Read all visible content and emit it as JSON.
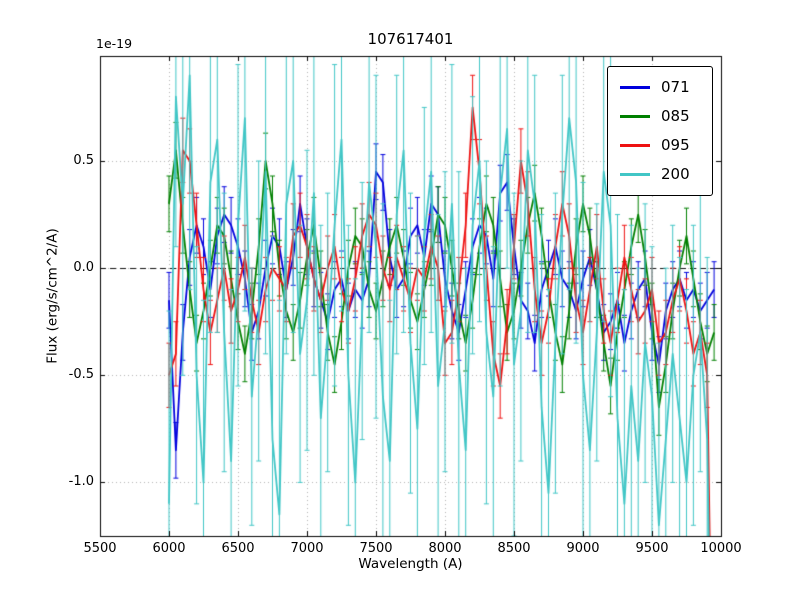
{
  "title": "107617401",
  "axes": {
    "xlabel": "Wavelength (A)",
    "ylabel": "Flux (erg/s/cm^2/A)",
    "offset_text": "1e-19",
    "xlim": [
      5500,
      10000
    ],
    "ylim": [
      -1.25,
      0.99
    ],
    "xticks": [
      5500,
      6000,
      6500,
      7000,
      7500,
      8000,
      8500,
      9000,
      9500,
      10000
    ],
    "yticks": [
      -1.0,
      -0.5,
      0.0,
      0.5
    ],
    "ytick_labels": [
      "-1.0",
      "-0.5",
      "0.0",
      "0.5"
    ],
    "grid": true,
    "grid_color": "#b0b0b0",
    "zero_line_color": "#111111"
  },
  "legend": {
    "position": "upper right",
    "entries": [
      "071",
      "085",
      "095",
      "200"
    ]
  },
  "chart_data": {
    "type": "line",
    "title": "107617401",
    "xlabel": "Wavelength (A)",
    "ylabel": "Flux (erg/s/cm^2/A)",
    "scale_factor": "1e-19",
    "xlim": [
      5500,
      10000
    ],
    "ylim": [
      -1.25,
      0.99
    ],
    "x_start": 6000,
    "x_step": 50,
    "series": [
      {
        "name": "071",
        "color": "#0000dd",
        "yerr": 0.13,
        "values": [
          -0.15,
          -0.85,
          -0.3,
          0.05,
          0.2,
          0.1,
          -0.1,
          0.15,
          0.25,
          0.2,
          0.1,
          -0.05,
          -0.3,
          -0.2,
          0.0,
          0.15,
          0.1,
          -0.1,
          0.05,
          0.3,
          0.1,
          -0.05,
          -0.15,
          -0.25,
          -0.1,
          -0.05,
          -0.2,
          -0.1,
          -0.15,
          -0.05,
          0.45,
          0.4,
          0.05,
          -0.1,
          -0.05,
          0.15,
          0.2,
          0.05,
          0.3,
          0.25,
          -0.05,
          -0.2,
          -0.3,
          -0.1,
          0.1,
          0.2,
          0.15,
          -0.05,
          0.35,
          0.4,
          0.1,
          -0.15,
          -0.2,
          -0.35,
          -0.1,
          0.0,
          0.1,
          -0.05,
          -0.1,
          -0.2,
          -0.05,
          0.05,
          -0.1,
          -0.3,
          -0.25,
          -0.15,
          -0.35,
          -0.2,
          -0.1,
          -0.05,
          -0.3,
          -0.45,
          -0.2,
          -0.1,
          -0.05,
          -0.15,
          -0.1,
          -0.2,
          -0.15,
          -0.1
        ]
      },
      {
        "name": "085",
        "color": "#008000",
        "yerr": 0.13,
        "values": [
          0.3,
          0.55,
          0.2,
          -0.1,
          -0.35,
          -0.2,
          0.0,
          0.2,
          0.15,
          -0.05,
          -0.25,
          -0.4,
          -0.2,
          0.1,
          0.5,
          0.3,
          0.0,
          -0.2,
          -0.3,
          -0.15,
          0.05,
          0.2,
          -0.05,
          -0.3,
          -0.45,
          -0.25,
          0.0,
          0.15,
          0.1,
          -0.1,
          -0.2,
          -0.05,
          0.1,
          0.2,
          0.05,
          -0.15,
          -0.25,
          -0.1,
          0.05,
          0.25,
          0.2,
          0.0,
          -0.2,
          -0.35,
          -0.15,
          0.1,
          0.3,
          0.2,
          -0.05,
          -0.3,
          -0.2,
          0.0,
          0.2,
          0.35,
          0.15,
          -0.1,
          -0.3,
          -0.45,
          -0.2,
          0.1,
          0.3,
          0.15,
          -0.1,
          -0.35,
          -0.55,
          -0.3,
          -0.1,
          0.1,
          0.25,
          0.05,
          -0.2,
          -0.65,
          -0.45,
          -0.2,
          0.0,
          0.15,
          -0.05,
          -0.25,
          -0.4,
          -0.3
        ]
      },
      {
        "name": "095",
        "color": "#ee1111",
        "yerr": 0.15,
        "values": [
          -0.5,
          -0.4,
          0.55,
          0.5,
          0.2,
          -0.1,
          -0.3,
          -0.15,
          0.0,
          -0.2,
          -0.1,
          0.05,
          -0.15,
          -0.3,
          -0.1,
          0.0,
          -0.05,
          -0.1,
          0.15,
          0.2,
          0.1,
          -0.05,
          -0.15,
          0.0,
          0.1,
          -0.1,
          -0.2,
          -0.05,
          0.15,
          0.25,
          0.2,
          0.0,
          -0.1,
          0.05,
          -0.05,
          -0.15,
          0.0,
          -0.05,
          0.1,
          0.0,
          -0.35,
          -0.3,
          -0.1,
          0.2,
          0.75,
          0.45,
          0.0,
          -0.4,
          -0.55,
          -0.25,
          0.1,
          0.5,
          0.3,
          -0.1,
          -0.35,
          -0.2,
          0.1,
          0.3,
          0.15,
          -0.15,
          -0.3,
          -0.1,
          0.1,
          -0.2,
          -0.35,
          -0.15,
          0.05,
          -0.1,
          -0.25,
          -0.2,
          -0.1,
          -0.35,
          -0.3,
          -0.15,
          -0.05,
          -0.2,
          -0.4,
          -0.3,
          -0.5,
          -2.6
        ]
      },
      {
        "name": "200",
        "color": "#41c6c6",
        "yerr_values": [
          0.9,
          0.7,
          0.8,
          1.0,
          0.6,
          0.85,
          0.7,
          0.9,
          0.65,
          0.8,
          0.75,
          0.9,
          0.6,
          0.7,
          0.85,
          0.95,
          1.0,
          0.7,
          0.8,
          0.6,
          0.7,
          0.85,
          0.9,
          0.65,
          0.75,
          0.8,
          0.7,
          0.95,
          0.6,
          0.7,
          0.8,
          0.9,
          0.75,
          0.65,
          0.85,
          0.7,
          0.9,
          0.6,
          0.75,
          0.8,
          0.7,
          0.65,
          0.9,
          0.85,
          0.6,
          0.75,
          0.8,
          0.7,
          0.9,
          0.65,
          0.8,
          0.7,
          0.85,
          0.6,
          0.9,
          0.95,
          0.7,
          0.65,
          0.8,
          0.75,
          0.9,
          0.85,
          0.6,
          0.7,
          0.8,
          0.95,
          1.0,
          0.75,
          0.9,
          0.65,
          0.7,
          0.85,
          0.8,
          0.6,
          0.75,
          0.9,
          0.7,
          0.65,
          0.85,
          0.95
        ],
        "values": [
          -1.1,
          0.8,
          0.3,
          0.9,
          -0.5,
          -1.0,
          0.4,
          0.6,
          -0.3,
          -0.9,
          0.2,
          0.7,
          -0.6,
          -0.2,
          0.45,
          -0.8,
          -1.15,
          0.3,
          0.5,
          -0.4,
          -0.15,
          0.35,
          -0.7,
          -0.3,
          0.2,
          0.6,
          -0.5,
          -1.0,
          -0.2,
          0.4,
          0.1,
          -0.6,
          -0.9,
          0.25,
          0.55,
          -0.35,
          -0.75,
          0.15,
          0.45,
          -0.55,
          -0.25,
          0.3,
          -0.45,
          -0.85,
          0.2,
          0.5,
          -0.3,
          -0.6,
          0.35,
          0.65,
          -0.45,
          -0.2,
          0.55,
          0.3,
          -0.65,
          -1.05,
          -0.35,
          0.25,
          0.7,
          0.4,
          -0.5,
          -0.85,
          -0.3,
          0.45,
          0.2,
          -0.7,
          -1.1,
          -0.55,
          -0.9,
          -0.35,
          -0.6,
          -1.2,
          -0.8,
          -0.4,
          -0.7,
          -1.0,
          -0.5,
          -0.3,
          -0.8,
          -2.8
        ]
      }
    ]
  }
}
